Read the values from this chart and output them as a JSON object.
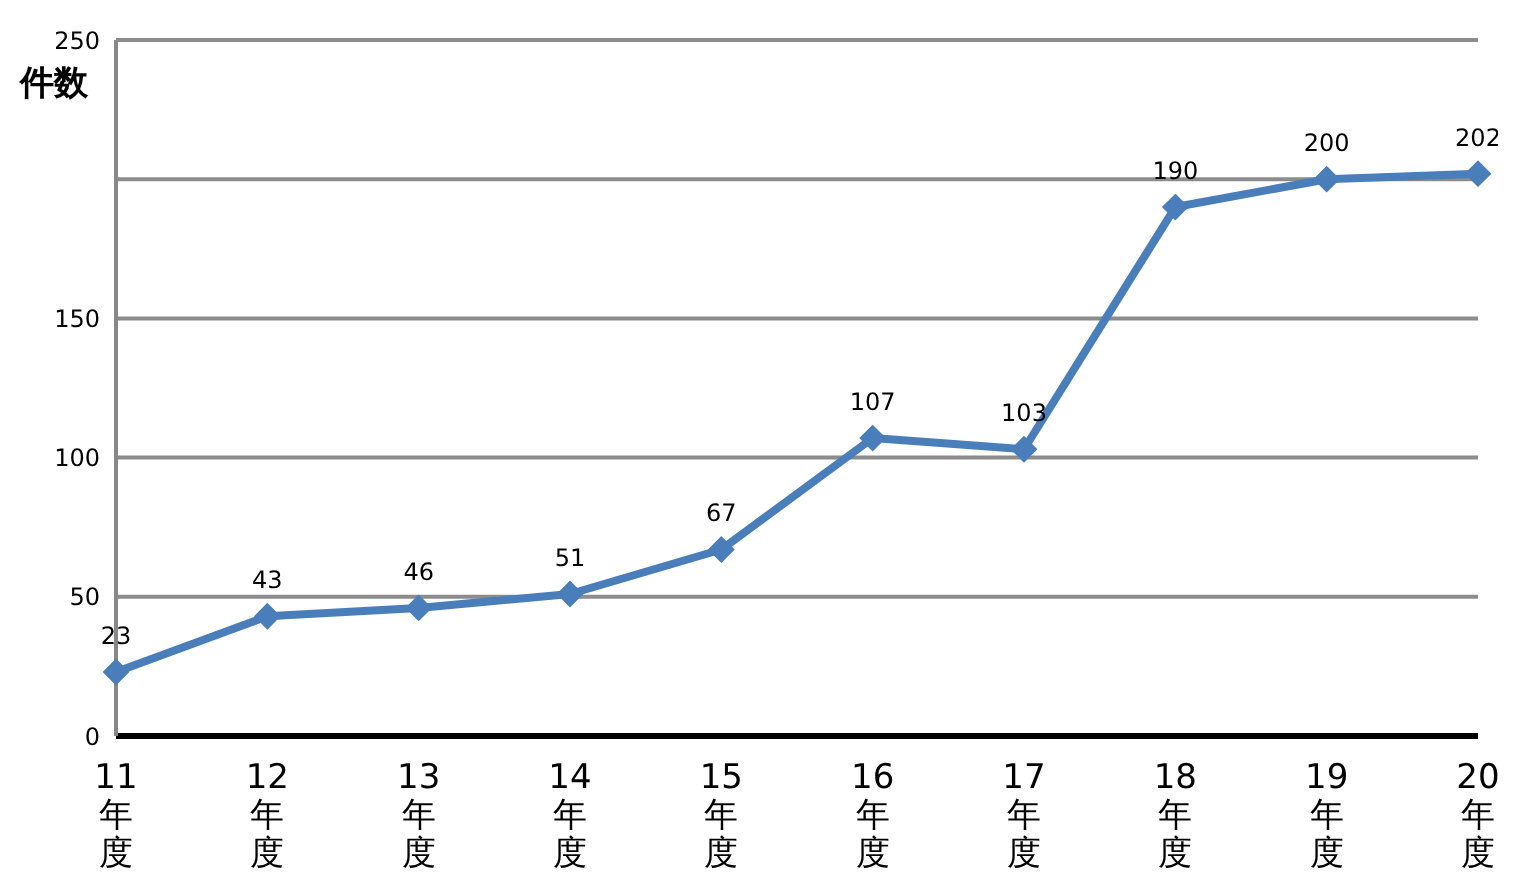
{
  "chart_data": {
    "type": "line",
    "ylabel": "件数",
    "categories": [
      "11年度",
      "12年度",
      "13年度",
      "14年度",
      "15年度",
      "16年度",
      "17年度",
      "18年度",
      "19年度",
      "20年度"
    ],
    "series": [
      {
        "color": "#4a7ebb",
        "values": [
          23,
          43,
          46,
          51,
          67,
          107,
          103,
          190,
          200,
          202
        ]
      }
    ],
    "ylim": [
      0,
      250
    ],
    "yticks": [
      0,
      50,
      100,
      150,
      {
        "value": 200,
        "label": null
      },
      250
    ],
    "grid": "y",
    "data_labels": true,
    "marker": "diamond",
    "line_style": "solid",
    "legend": false
  }
}
